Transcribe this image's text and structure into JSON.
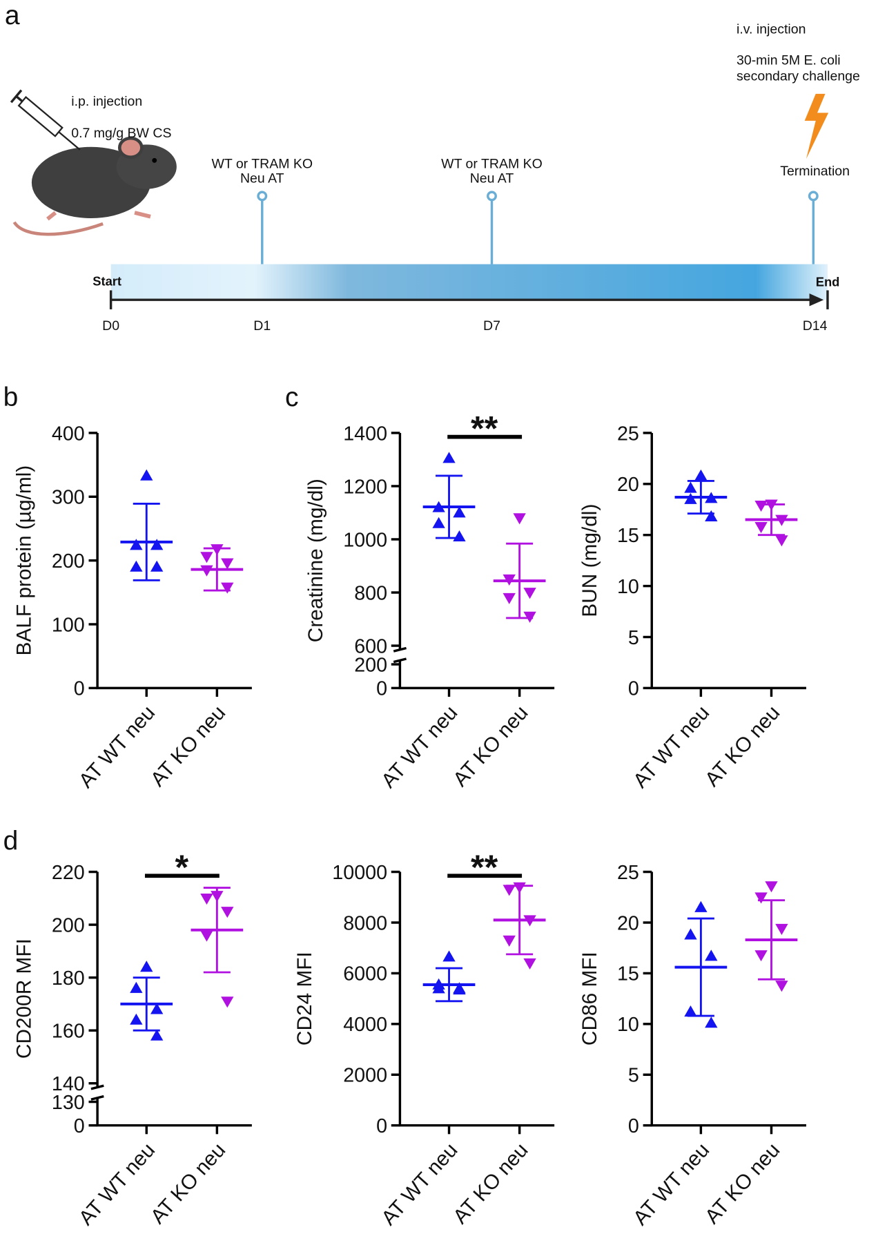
{
  "panels": [
    "a",
    "b",
    "c",
    "d"
  ],
  "timeline": {
    "injection": [
      "i.p. injection",
      "0.7 mg/g BW CS"
    ],
    "events": [
      [
        "WT or TRAM KO",
        "Neu AT"
      ],
      [
        "WT or TRAM KO",
        "Neu AT"
      ]
    ],
    "challenge": [
      "i.v. injection",
      "30-min 5M E. coli",
      "secondary challenge"
    ],
    "termination": "Termination",
    "start": "Start",
    "end": "End",
    "days": [
      "D0",
      "D1",
      "D7",
      "D14"
    ]
  },
  "chart_data": [
    {
      "type": "scatter",
      "ylabel": "BALF protein (µg/ml)",
      "categories": [
        "AT WT neu",
        "AT KO neu"
      ],
      "ylim": [
        0,
        400
      ],
      "yticks": [
        0,
        100,
        200,
        300,
        400
      ],
      "series": [
        {
          "color": "#1414f0",
          "marker": "triangle-up",
          "values": [
            333,
            224,
            224,
            190,
            190
          ],
          "mean": 229,
          "sd": 60
        },
        {
          "color": "#b010e0",
          "marker": "triangle-down",
          "values": [
            218,
            206,
            196,
            185,
            158
          ],
          "mean": 186,
          "sd": 33
        }
      ]
    },
    {
      "type": "scatter",
      "ylabel": "Creatinine (mg/dl)",
      "categories": [
        "AT WT neu",
        "AT KO neu"
      ],
      "ylim": [
        0,
        1400
      ],
      "ybreak": [
        200,
        600
      ],
      "yticks": [
        0,
        200,
        600,
        800,
        1000,
        1200,
        1400
      ],
      "significance": "**",
      "series": [
        {
          "color": "#1414f0",
          "marker": "triangle-up",
          "values": [
            1305,
            1120,
            1100,
            1060,
            1010
          ],
          "mean": 1122,
          "sd": 117
        },
        {
          "color": "#b010e0",
          "marker": "triangle-down",
          "values": [
            1080,
            850,
            800,
            780,
            710
          ],
          "mean": 844,
          "sd": 140
        }
      ]
    },
    {
      "type": "scatter",
      "ylabel": "BUN (mg/dl)",
      "categories": [
        "AT WT neu",
        "AT KO neu"
      ],
      "ylim": [
        0,
        25
      ],
      "yticks": [
        0,
        5,
        10,
        15,
        20,
        25
      ],
      "series": [
        {
          "color": "#1414f0",
          "marker": "triangle-up",
          "values": [
            20.8,
            19.6,
            18.6,
            18.5,
            16.8
          ],
          "mean": 18.7,
          "sd": 1.6
        },
        {
          "color": "#b010e0",
          "marker": "triangle-down",
          "values": [
            18.0,
            17.9,
            16.5,
            15.8,
            14.5
          ],
          "mean": 16.5,
          "sd": 1.5
        }
      ]
    },
    {
      "type": "scatter",
      "ylabel": "CD200R MFI",
      "categories": [
        "AT WT neu",
        "AT KO neu"
      ],
      "ylim": [
        0,
        220
      ],
      "ybreak": [
        130,
        140
      ],
      "yticks": [
        0,
        130,
        140,
        160,
        180,
        200,
        220
      ],
      "significance": "*",
      "series": [
        {
          "color": "#1414f0",
          "marker": "triangle-up",
          "values": [
            184,
            176,
            168,
            164,
            158
          ],
          "mean": 170,
          "sd": 10
        },
        {
          "color": "#b010e0",
          "marker": "triangle-down",
          "values": [
            211,
            210,
            205,
            196,
            171
          ],
          "mean": 198,
          "sd": 16
        }
      ]
    },
    {
      "type": "scatter",
      "ylabel": "CD24 MFI",
      "categories": [
        "AT WT neu",
        "AT KO neu"
      ],
      "ylim": [
        0,
        10000
      ],
      "yticks": [
        0,
        2000,
        4000,
        6000,
        8000,
        10000
      ],
      "significance": "**",
      "series": [
        {
          "color": "#1414f0",
          "marker": "triangle-up",
          "values": [
            6650,
            5550,
            5400,
            5400,
            5350
          ],
          "mean": 5550,
          "sd": 650
        },
        {
          "color": "#b010e0",
          "marker": "triangle-down",
          "values": [
            9400,
            9300,
            8100,
            7300,
            6400
          ],
          "mean": 8100,
          "sd": 1350
        }
      ]
    },
    {
      "type": "scatter",
      "ylabel": "CD86 MFI",
      "categories": [
        "AT WT neu",
        "AT KO neu"
      ],
      "ylim": [
        0,
        25
      ],
      "yticks": [
        0,
        5,
        10,
        15,
        20,
        25
      ],
      "series": [
        {
          "color": "#1414f0",
          "marker": "triangle-up",
          "values": [
            21.5,
            18.8,
            16.7,
            11.2,
            10.1
          ],
          "mean": 15.6,
          "sd": 4.8
        },
        {
          "color": "#b010e0",
          "marker": "triangle-down",
          "values": [
            23.6,
            22.5,
            19.4,
            16.8,
            13.8
          ],
          "mean": 18.3,
          "sd": 3.9
        }
      ]
    }
  ]
}
